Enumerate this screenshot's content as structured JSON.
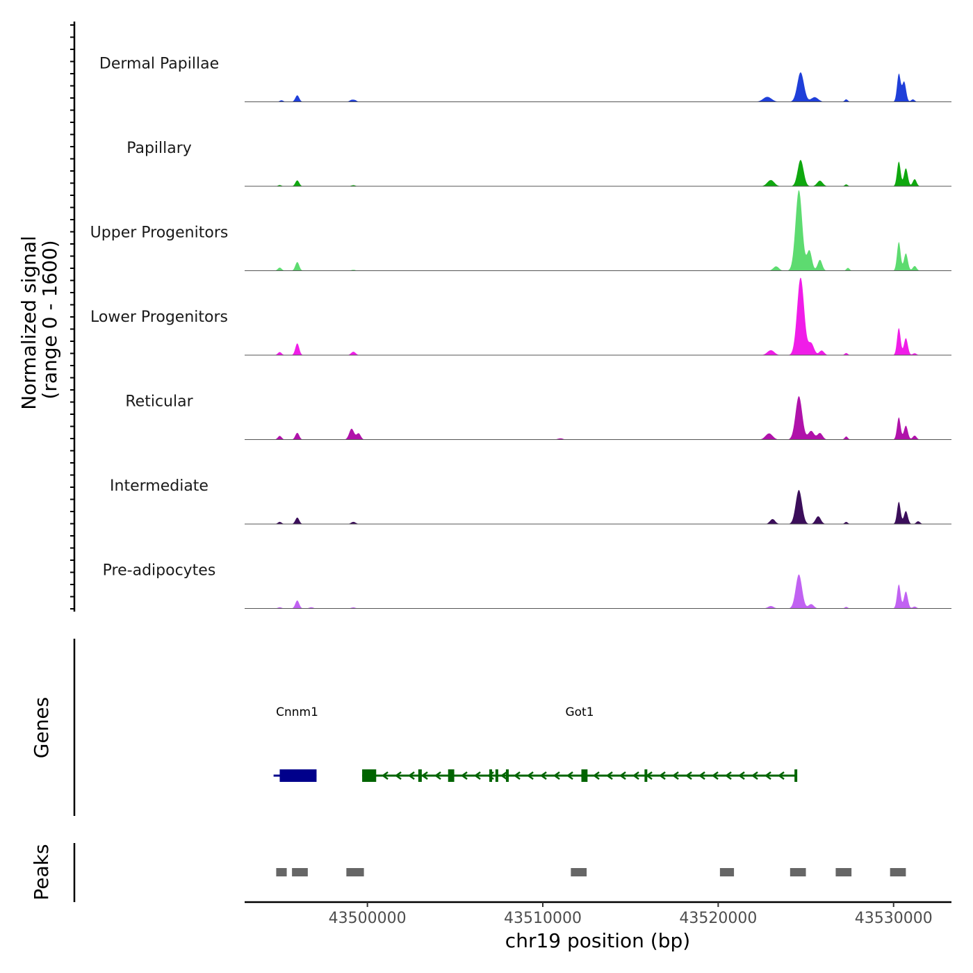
{
  "chart_data": {
    "type": "area",
    "chromosome": "chr19",
    "xlim": [
      43493000,
      43533300
    ],
    "xlabel": "chr19 position (bp)",
    "x_ticks": [
      {
        "value": 43500000,
        "label": "43500000"
      },
      {
        "value": 43510000,
        "label": "43510000"
      },
      {
        "value": 43520000,
        "label": "43520000"
      },
      {
        "value": 43530000,
        "label": "43530000"
      }
    ],
    "ylabel": "Normalized signal\n(range 0 - 1600)",
    "ylabel_lines": [
      "Normalized signal",
      "(range 0 - 1600)"
    ],
    "ylim": [
      0,
      1600
    ],
    "tracks": [
      {
        "name": "Dermal Papillae",
        "color": "#1f3fd9",
        "peaks": [
          [
            43495100,
            50,
            100
          ],
          [
            43496000,
            210,
            110
          ],
          [
            43499100,
            60,
            120
          ],
          [
            43499300,
            45,
            100
          ],
          [
            43522800,
            160,
            240
          ],
          [
            43524700,
            950,
            190
          ],
          [
            43525500,
            150,
            200
          ],
          [
            43527300,
            80,
            90
          ],
          [
            43530300,
            900,
            100
          ],
          [
            43530600,
            650,
            110
          ],
          [
            43531100,
            80,
            100
          ]
        ]
      },
      {
        "name": "Papillary",
        "color": "#0fa80f",
        "peaks": [
          [
            43495000,
            40,
            100
          ],
          [
            43496000,
            190,
            110
          ],
          [
            43499200,
            35,
            120
          ],
          [
            43523000,
            200,
            200
          ],
          [
            43524700,
            850,
            170
          ],
          [
            43525800,
            180,
            160
          ],
          [
            43527300,
            60,
            90
          ],
          [
            43530300,
            800,
            100
          ],
          [
            43530700,
            580,
            110
          ],
          [
            43531200,
            230,
            110
          ]
        ]
      },
      {
        "name": "Upper Progenitors",
        "color": "#5ddb70",
        "peaks": [
          [
            43495000,
            100,
            110
          ],
          [
            43496000,
            280,
            110
          ],
          [
            43499200,
            30,
            120
          ],
          [
            43523300,
            140,
            160
          ],
          [
            43524600,
            2600,
            190
          ],
          [
            43525200,
            650,
            140
          ],
          [
            43525800,
            350,
            130
          ],
          [
            43527400,
            90,
            90
          ],
          [
            43530300,
            930,
            100
          ],
          [
            43530700,
            560,
            110
          ],
          [
            43531200,
            150,
            110
          ]
        ]
      },
      {
        "name": "Lower Progenitors",
        "color": "#f01de8",
        "peaks": [
          [
            43495000,
            100,
            110
          ],
          [
            43496000,
            380,
            110
          ],
          [
            43499200,
            110,
            130
          ],
          [
            43523000,
            160,
            200
          ],
          [
            43524700,
            2500,
            200
          ],
          [
            43525300,
            380,
            160
          ],
          [
            43525900,
            150,
            140
          ],
          [
            43527300,
            70,
            90
          ],
          [
            43530300,
            880,
            100
          ],
          [
            43530700,
            550,
            110
          ],
          [
            43531200,
            60,
            110
          ]
        ]
      },
      {
        "name": "Reticular",
        "color": "#b012aa",
        "peaks": [
          [
            43495000,
            120,
            110
          ],
          [
            43496000,
            220,
            110
          ],
          [
            43499100,
            350,
            140
          ],
          [
            43499500,
            200,
            120
          ],
          [
            43511000,
            40,
            150
          ],
          [
            43522900,
            200,
            200
          ],
          [
            43524600,
            1400,
            190
          ],
          [
            43525300,
            280,
            160
          ],
          [
            43525800,
            210,
            150
          ],
          [
            43527300,
            100,
            90
          ],
          [
            43530300,
            720,
            100
          ],
          [
            43530700,
            450,
            110
          ],
          [
            43531200,
            130,
            110
          ]
        ]
      },
      {
        "name": "Intermediate",
        "color": "#3b0e5a",
        "peaks": [
          [
            43495000,
            70,
            110
          ],
          [
            43496000,
            210,
            110
          ],
          [
            43499200,
            70,
            130
          ],
          [
            43523100,
            160,
            150
          ],
          [
            43524600,
            1100,
            180
          ],
          [
            43525700,
            250,
            150
          ],
          [
            43527300,
            70,
            90
          ],
          [
            43530300,
            720,
            100
          ],
          [
            43530700,
            420,
            110
          ],
          [
            43531400,
            90,
            110
          ]
        ]
      },
      {
        "name": "Pre-adipocytes",
        "color": "#c162f2",
        "peaks": [
          [
            43495000,
            40,
            110
          ],
          [
            43496000,
            260,
            110
          ],
          [
            43496800,
            40,
            120
          ],
          [
            43499200,
            35,
            120
          ],
          [
            43523000,
            80,
            160
          ],
          [
            43524600,
            1100,
            180
          ],
          [
            43525300,
            140,
            150
          ],
          [
            43527300,
            50,
            90
          ],
          [
            43530300,
            780,
            100
          ],
          [
            43530700,
            550,
            110
          ],
          [
            43531200,
            60,
            110
          ]
        ]
      }
    ],
    "genes_track_label": "Genes",
    "genes": [
      {
        "name": "Cnnm1",
        "strand": "+",
        "color": "#00008b",
        "start": 43494650,
        "end": 43497100,
        "exons": [
          [
            43495000,
            43497100
          ]
        ]
      },
      {
        "name": "Got1",
        "strand": "-",
        "color": "#006400",
        "start": 43499700,
        "end": 43524500,
        "exons": [
          [
            43499700,
            43500500
          ],
          [
            43502900,
            43503100
          ],
          [
            43504600,
            43504950
          ],
          [
            43506950,
            43507050
          ],
          [
            43507300,
            43507450
          ],
          [
            43507900,
            43508050
          ],
          [
            43512200,
            43512550
          ],
          [
            43515800,
            43515950
          ],
          [
            43524350,
            43524500
          ]
        ]
      }
    ],
    "peaks_track_label": "Peaks",
    "peak_regions": [
      [
        43494800,
        43495400
      ],
      [
        43495700,
        43496600
      ],
      [
        43498800,
        43499800
      ],
      [
        43511600,
        43512500
      ],
      [
        43520100,
        43520900
      ],
      [
        43524100,
        43525000
      ],
      [
        43526700,
        43527600
      ],
      [
        43529800,
        43530700
      ]
    ]
  }
}
